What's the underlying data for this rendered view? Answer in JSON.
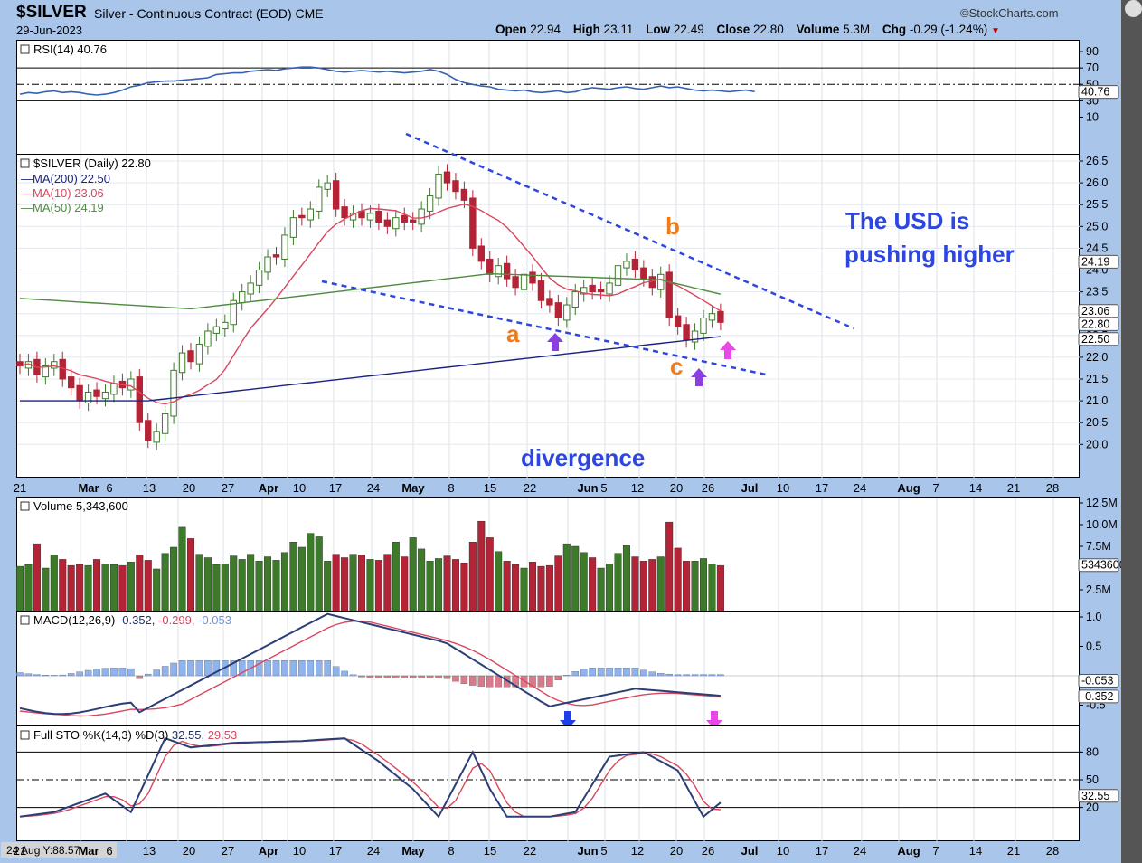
{
  "header": {
    "symbol": "$SILVER",
    "name": "Silver - Continuous Contract (EOD)",
    "exchange": "CME",
    "date": "29-Jun-2023",
    "brand": "©StockCharts.com",
    "open_label": "Open",
    "open": "22.94",
    "high_label": "High",
    "high": "23.11",
    "low_label": "Low",
    "low": "22.49",
    "close_label": "Close",
    "close": "22.80",
    "volume_label": "Volume",
    "volume": "5.3M",
    "chg_label": "Chg",
    "chg": "-0.29 (-1.24%)"
  },
  "colors": {
    "up": "#3d7a2a",
    "down": "#b52436",
    "ma200": "#1a237e",
    "ma10": "#d9475e",
    "ma50": "#4f8a3f",
    "rsi": "#3561b3",
    "macd": "#2c3e75",
    "signal": "#d9475e",
    "hist": "#8fb3ec",
    "trend": "#2d46e0",
    "annot_text": "#2d46e0",
    "wave_label": "#f07b18",
    "arrow_purple": "#8a3fe0",
    "arrow_pink": "#e848e6",
    "arrow_blue": "#1e3ee8"
  },
  "x_axis": {
    "labels": [
      "21",
      "Mar",
      "6",
      "13",
      "20",
      "27",
      "Apr",
      "10",
      "17",
      "24",
      "May",
      "8",
      "15",
      "22",
      "Jun",
      "5",
      "12",
      "20",
      "26",
      "Jul",
      "10",
      "17",
      "24",
      "Aug",
      "7",
      "14",
      "21",
      "28"
    ]
  },
  "rsi": {
    "legend": "RSI(14) 40.76",
    "value_tag": "40.76",
    "ticks": [
      "90",
      "70",
      "50",
      "30",
      "10"
    ]
  },
  "price": {
    "legend": "$SILVER (Daily) 22.80",
    "ma200_legend": "MA(200) 22.50",
    "ma10_legend": "MA(10) 23.06",
    "ma50_legend": "MA(50) 24.19",
    "ticks": [
      "26.5",
      "26.0",
      "25.5",
      "25.0",
      "24.5",
      "24.0",
      "23.5",
      "23.0",
      "22.5",
      "22.0",
      "21.5",
      "21.0",
      "20.5",
      "20.0"
    ],
    "tag_ma50": "24.19",
    "tag_ma10": "23.06",
    "tag_close": "22.80",
    "tag_ma200": "22.50",
    "annotation_title": "The USD is",
    "annotation_title2": "pushing higher",
    "annotation_divergence": "divergence",
    "wave_a": "a",
    "wave_b": "b",
    "wave_c": "c"
  },
  "volume": {
    "legend": "Volume 5,343,600",
    "value_tag": "5343600",
    "ticks": [
      "12.5M",
      "10.0M",
      "7.5M",
      "5.0M",
      "2.5M"
    ]
  },
  "macd": {
    "legend_prefix": "MACD(12,26,9)",
    "v1": "-0.352,",
    "v2": "-0.299,",
    "v3": "-0.053",
    "tag_hist": "-0.053",
    "tag_macd": "-0.352",
    "ticks": [
      "1.0",
      "0.5",
      "-0.5"
    ]
  },
  "sto": {
    "legend_prefix": "Full STO %K(14,3) %D(3)",
    "k": "32.55,",
    "d": "29.53",
    "value_tag": "32.55",
    "ticks": [
      "80",
      "50",
      "20"
    ],
    "footer": "24 Aug Y:88.57"
  },
  "chart_data": [
    {
      "type": "line",
      "title": "RSI(14) 40.76",
      "series": [
        {
          "name": "RSI(14)",
          "values": [
            38,
            40,
            39,
            41,
            42,
            40,
            41,
            40,
            38,
            37,
            38,
            40,
            43,
            47,
            49,
            52,
            53,
            54,
            54,
            55,
            56,
            57,
            58,
            62,
            63,
            64,
            64,
            66,
            67,
            68,
            67,
            69,
            70,
            71,
            71,
            70,
            68,
            66,
            65,
            66,
            67,
            66,
            65,
            66,
            65,
            64,
            65,
            66,
            68,
            66,
            62,
            56,
            52,
            50,
            48,
            47,
            44,
            43,
            42,
            43,
            41,
            40,
            41,
            42,
            40,
            41,
            44,
            46,
            45,
            44,
            46,
            47,
            45,
            44,
            46,
            48,
            46,
            47,
            45,
            43,
            42,
            43,
            42,
            41,
            42,
            43,
            41
          ]
        }
      ],
      "ylim": [
        0,
        100
      ]
    },
    {
      "type": "candlestick",
      "title": "$SILVER (Daily) 22.80",
      "series": [
        {
          "name": "$SILVER",
          "close": [
            21.8,
            21.9,
            21.6,
            21.8,
            21.9,
            21.5,
            21.3,
            21.0,
            21.2,
            21.1,
            21.2,
            21.4,
            21.3,
            21.5,
            20.5,
            20.1,
            20.3,
            20.7,
            21.7,
            22.1,
            21.9,
            22.3,
            22.6,
            22.7,
            22.8,
            23.3,
            23.5,
            23.7,
            24.0,
            24.3,
            24.3,
            24.8,
            25.2,
            25.2,
            25.4,
            25.9,
            26.0,
            25.4,
            25.2,
            25.3,
            25.2,
            25.3,
            25.1,
            25.0,
            25.2,
            25.1,
            25.1,
            25.4,
            25.7,
            26.2,
            26.0,
            25.8,
            25.6,
            24.5,
            24.2,
            23.9,
            24.1,
            23.8,
            23.6,
            23.9,
            23.7,
            23.3,
            23.2,
            22.9,
            23.2,
            23.5,
            23.6,
            23.5,
            23.5,
            23.7,
            24.1,
            24.2,
            24.0,
            23.8,
            23.6,
            23.9,
            22.9,
            22.7,
            22.4,
            22.6,
            22.9,
            23.0,
            22.8
          ]
        },
        {
          "name": "MA(200)",
          "last": 22.5
        },
        {
          "name": "MA(10)",
          "last": 23.06
        },
        {
          "name": "MA(50)",
          "last": 24.19
        }
      ],
      "ylim": [
        19.8,
        26.7
      ]
    },
    {
      "type": "bar",
      "title": "Volume 5,343,600",
      "series": [
        {
          "name": "Volume",
          "values": [
            5.2,
            5.4,
            7.8,
            5.0,
            6.5,
            6.0,
            5.3,
            5.4,
            5.3,
            6.0,
            5.5,
            5.4,
            5.3,
            5.7,
            6.5,
            5.9,
            4.9,
            6.7,
            7.4,
            9.7,
            8.4,
            6.6,
            6.2,
            5.4,
            5.5,
            6.4,
            6.0,
            6.6,
            5.8,
            6.3,
            5.9,
            6.8,
            8.0,
            7.4,
            9.0,
            8.6,
            5.8,
            6.6,
            6.2,
            6.6,
            6.5,
            6.0,
            5.9,
            6.6,
            8.0,
            6.3,
            8.5,
            7.2,
            5.8,
            6.1,
            6.4,
            6.0,
            5.6,
            8.0,
            10.4,
            8.5,
            6.9,
            5.8,
            5.4,
            5.0,
            5.7,
            5.2,
            5.3,
            6.4,
            7.8,
            7.5,
            6.8,
            6.2,
            5.0,
            5.5,
            6.7,
            7.6,
            6.3,
            5.8,
            6.0,
            6.3,
            10.3,
            7.3,
            5.8,
            5.8,
            6.1,
            5.5,
            5.3
          ]
        }
      ],
      "ylim": [
        0,
        12.5
      ]
    },
    {
      "type": "line",
      "title": "MACD(12,26,9) -0.352, -0.299, -0.053",
      "series": [
        {
          "name": "MACD",
          "last": -0.352
        },
        {
          "name": "Signal",
          "last": -0.299
        },
        {
          "name": "Histogram",
          "last": -0.053
        }
      ],
      "ylim": [
        -0.8,
        1.1
      ]
    },
    {
      "type": "line",
      "title": "Full STO %K(14,3) %D(3) 32.55, 29.53",
      "series": [
        {
          "name": "%K",
          "last": 32.55
        },
        {
          "name": "%D",
          "last": 29.53
        }
      ],
      "ylim": [
        0,
        100
      ]
    }
  ]
}
